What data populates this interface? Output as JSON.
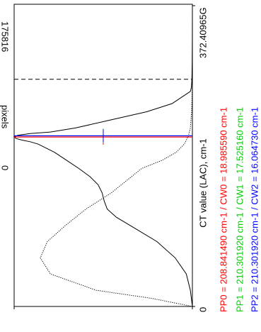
{
  "chart_data": {
    "type": "line",
    "orientation": "rotated",
    "title": "",
    "xlabel": "CT value (LAC), cm-1",
    "ylabel": "pixels",
    "x_ticks": [
      "0",
      "372.40965G"
    ],
    "y_ticks": [
      "0",
      "175816"
    ],
    "xlim": [
      0,
      372.40965
    ],
    "ylim": [
      0,
      175816
    ],
    "grid": false,
    "annotations": [
      {
        "text": "PP0 = 208.841490 cm-1 / CW0 = 18.985590 cm-1",
        "color": "#ff0000"
      },
      {
        "text": "PP1 = 210.301920 cm-1 / CW1 = 17.525160 cm-1",
        "color": "#00cc00"
      },
      {
        "text": "PP2 = 210.301920 cm-1 / CW2 = 16.064730 cm-1",
        "color": "#0000ff"
      }
    ],
    "series": [
      {
        "style": "solid",
        "color": "#000000",
        "x": [
          0,
          20,
          40,
          60,
          80,
          95,
          110,
          120,
          130,
          140,
          150,
          160,
          170,
          180,
          190,
          195,
          200,
          203,
          205,
          207,
          209,
          211,
          213,
          215,
          220,
          230,
          240,
          250,
          260,
          265,
          270,
          280,
          300,
          330,
          372
        ],
        "y": [
          0,
          2000,
          6000,
          17000,
          35000,
          55000,
          75000,
          84000,
          87000,
          89000,
          93000,
          101000,
          112000,
          124000,
          136000,
          144000,
          152000,
          160000,
          168000,
          174000,
          175816,
          172000,
          160000,
          140000,
          115000,
          80000,
          45000,
          20000,
          8000,
          2000,
          1000,
          500,
          200,
          100,
          0
        ]
      },
      {
        "style": "dotted",
        "color": "#000000",
        "x": [
          0,
          10,
          20,
          40,
          60,
          80,
          100,
          120,
          140,
          160,
          170,
          180,
          190,
          200,
          210,
          220,
          240,
          260,
          280,
          300
        ],
        "y": [
          0,
          40000,
          95000,
          140000,
          150000,
          143000,
          125000,
          105000,
          80000,
          60000,
          50000,
          30000,
          16000,
          8000,
          4000,
          2000,
          800,
          300,
          100,
          0
        ]
      }
    ],
    "reference_lines": [
      {
        "x": 208.84149,
        "width": 18.98559,
        "color": "#ff0000"
      },
      {
        "x": 210.30192,
        "width": 17.52516,
        "color": "#00cc00"
      },
      {
        "x": 210.30192,
        "width": 16.06473,
        "color": "#0000ff"
      },
      {
        "x": 280,
        "style": "dashed",
        "color": "#000000"
      }
    ]
  }
}
